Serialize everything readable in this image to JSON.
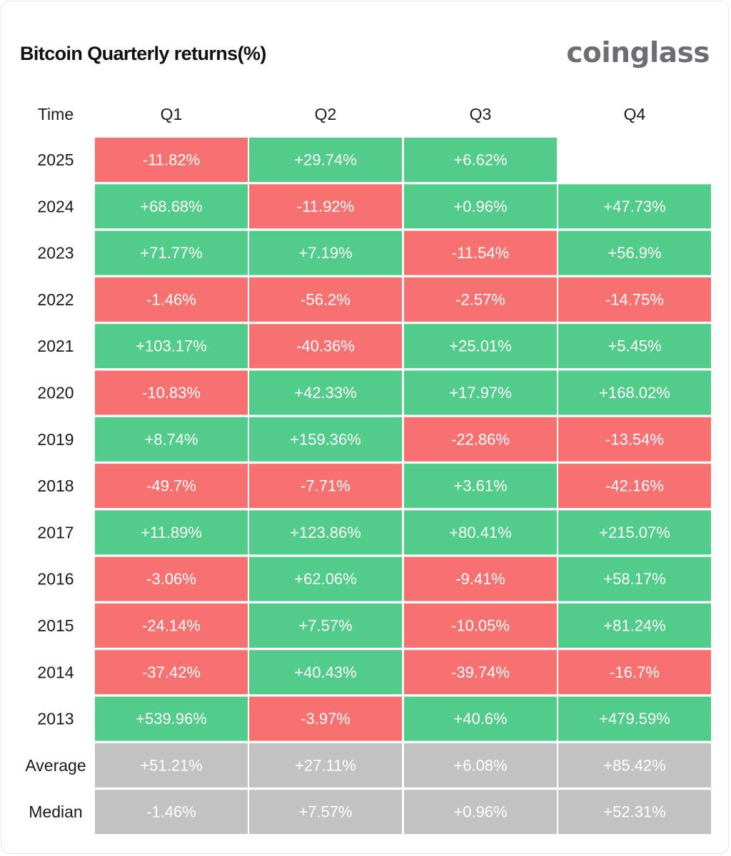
{
  "header": {
    "title": "Bitcoin Quarterly returns(%)",
    "brand": "coinglass"
  },
  "colors": {
    "positive": "#52cc8a",
    "negative": "#f87171",
    "summary": "#c2c2c2",
    "cell_text": "#ffffff"
  },
  "chart_data": {
    "type": "heatmap",
    "title": "Bitcoin Quarterly returns(%)",
    "row_header": "Time",
    "columns": [
      "Q1",
      "Q2",
      "Q3",
      "Q4"
    ],
    "rows": [
      {
        "label": "2025",
        "kind": "year",
        "cells": [
          "-11.82%",
          "+29.74%",
          "+6.62%",
          null
        ],
        "values": [
          -11.82,
          29.74,
          6.62,
          null
        ]
      },
      {
        "label": "2024",
        "kind": "year",
        "cells": [
          "+68.68%",
          "-11.92%",
          "+0.96%",
          "+47.73%"
        ],
        "values": [
          68.68,
          -11.92,
          0.96,
          47.73
        ]
      },
      {
        "label": "2023",
        "kind": "year",
        "cells": [
          "+71.77%",
          "+7.19%",
          "-11.54%",
          "+56.9%"
        ],
        "values": [
          71.77,
          7.19,
          -11.54,
          56.9
        ]
      },
      {
        "label": "2022",
        "kind": "year",
        "cells": [
          "-1.46%",
          "-56.2%",
          "-2.57%",
          "-14.75%"
        ],
        "values": [
          -1.46,
          -56.2,
          -2.57,
          -14.75
        ]
      },
      {
        "label": "2021",
        "kind": "year",
        "cells": [
          "+103.17%",
          "-40.36%",
          "+25.01%",
          "+5.45%"
        ],
        "values": [
          103.17,
          -40.36,
          25.01,
          5.45
        ]
      },
      {
        "label": "2020",
        "kind": "year",
        "cells": [
          "-10.83%",
          "+42.33%",
          "+17.97%",
          "+168.02%"
        ],
        "values": [
          -10.83,
          42.33,
          17.97,
          168.02
        ]
      },
      {
        "label": "2019",
        "kind": "year",
        "cells": [
          "+8.74%",
          "+159.36%",
          "-22.86%",
          "-13.54%"
        ],
        "values": [
          8.74,
          159.36,
          -22.86,
          -13.54
        ]
      },
      {
        "label": "2018",
        "kind": "year",
        "cells": [
          "-49.7%",
          "-7.71%",
          "+3.61%",
          "-42.16%"
        ],
        "values": [
          -49.7,
          -7.71,
          3.61,
          -42.16
        ]
      },
      {
        "label": "2017",
        "kind": "year",
        "cells": [
          "+11.89%",
          "+123.86%",
          "+80.41%",
          "+215.07%"
        ],
        "values": [
          11.89,
          123.86,
          80.41,
          215.07
        ]
      },
      {
        "label": "2016",
        "kind": "year",
        "cells": [
          "-3.06%",
          "+62.06%",
          "-9.41%",
          "+58.17%"
        ],
        "values": [
          -3.06,
          62.06,
          -9.41,
          58.17
        ]
      },
      {
        "label": "2015",
        "kind": "year",
        "cells": [
          "-24.14%",
          "+7.57%",
          "-10.05%",
          "+81.24%"
        ],
        "values": [
          -24.14,
          7.57,
          -10.05,
          81.24
        ]
      },
      {
        "label": "2014",
        "kind": "year",
        "cells": [
          "-37.42%",
          "+40.43%",
          "-39.74%",
          "-16.7%"
        ],
        "values": [
          -37.42,
          40.43,
          -39.74,
          -16.7
        ]
      },
      {
        "label": "2013",
        "kind": "year",
        "cells": [
          "+539.96%",
          "-3.97%",
          "+40.6%",
          "+479.59%"
        ],
        "values": [
          539.96,
          -3.97,
          40.6,
          479.59
        ]
      },
      {
        "label": "Average",
        "kind": "summary",
        "cells": [
          "+51.21%",
          "+27.11%",
          "+6.08%",
          "+85.42%"
        ],
        "values": [
          51.21,
          27.11,
          6.08,
          85.42
        ]
      },
      {
        "label": "Median",
        "kind": "summary",
        "cells": [
          "-1.46%",
          "+7.57%",
          "+0.96%",
          "+52.31%"
        ],
        "values": [
          -1.46,
          7.57,
          0.96,
          52.31
        ]
      }
    ]
  }
}
